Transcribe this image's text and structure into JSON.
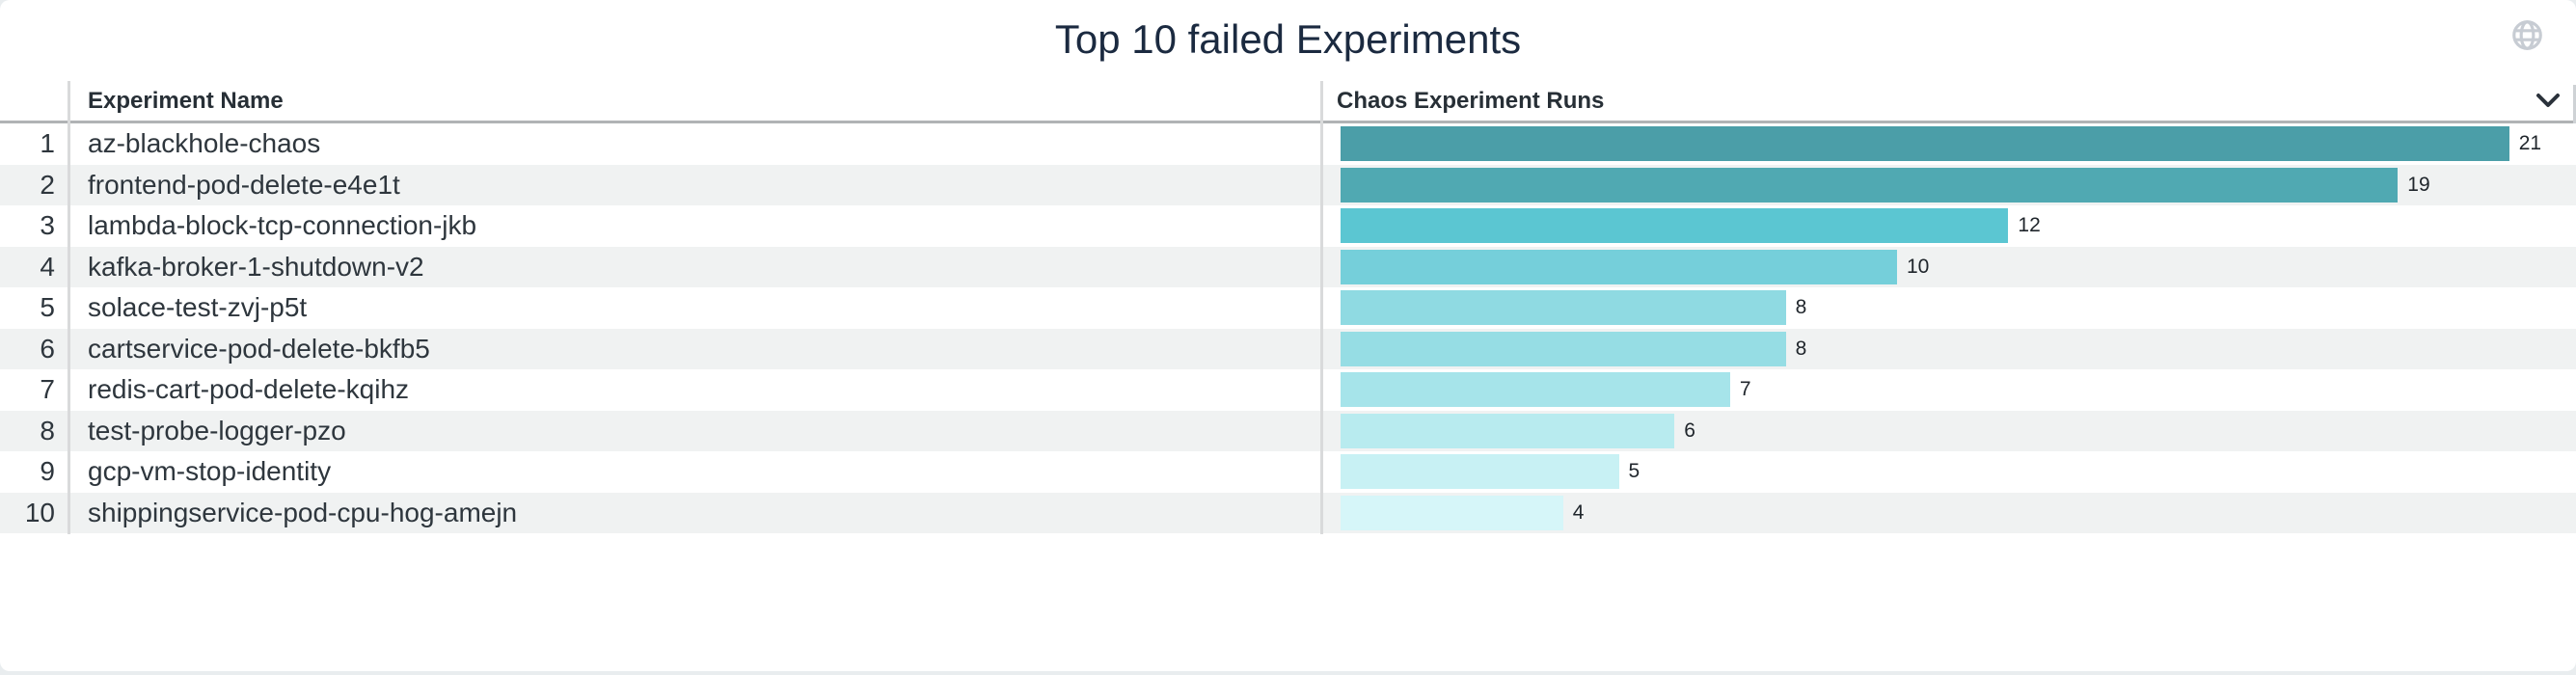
{
  "panel": {
    "title": "Top 10 failed Experiments",
    "background_color": "#ffffff",
    "page_background_color": "#e9edef",
    "title_color": "#1b2a40"
  },
  "icons": {
    "globe": "globe-icon",
    "chevron_down": "chevron-down-icon",
    "globe_color": "#c7ccd3",
    "chevron_color": "#2b323b"
  },
  "table": {
    "columns": [
      {
        "label": "Experiment Name"
      },
      {
        "label": "Chaos Experiment Runs"
      }
    ],
    "rows": [
      {
        "rank": "1",
        "name": "az-blackhole-chaos",
        "runs": "21"
      },
      {
        "rank": "2",
        "name": "frontend-pod-delete-e4e1t",
        "runs": "19"
      },
      {
        "rank": "3",
        "name": "lambda-block-tcp-connection-jkb",
        "runs": "12"
      },
      {
        "rank": "4",
        "name": "kafka-broker-1-shutdown-v2",
        "runs": "10"
      },
      {
        "rank": "5",
        "name": "solace-test-zvj-p5t",
        "runs": "8"
      },
      {
        "rank": "6",
        "name": "cartservice-pod-delete-bkfb5",
        "runs": "8"
      },
      {
        "rank": "7",
        "name": "redis-cart-pod-delete-kqihz",
        "runs": "7"
      },
      {
        "rank": "8",
        "name": "test-probe-logger-pzo",
        "runs": "6"
      },
      {
        "rank": "9",
        "name": "gcp-vm-stop-identity",
        "runs": "5"
      },
      {
        "rank": "10",
        "name": "shippingservice-pod-cpu-hog-amejn",
        "runs": "4"
      }
    ],
    "stripe_color": "#f0f2f2",
    "header_border_color": "#b0b3b5"
  },
  "chart_data": {
    "type": "bar",
    "orientation": "horizontal",
    "title": "Top 10 failed Experiments",
    "series_label": "Chaos Experiment Runs",
    "categories": [
      "az-blackhole-chaos",
      "frontend-pod-delete-e4e1t",
      "lambda-block-tcp-connection-jkb",
      "kafka-broker-1-shutdown-v2",
      "solace-test-zvj-p5t",
      "cartservice-pod-delete-bkfb5",
      "redis-cart-pod-delete-kqihz",
      "test-probe-logger-pzo",
      "gcp-vm-stop-identity",
      "shippingservice-pod-cpu-hog-amejn"
    ],
    "values": [
      21,
      19,
      12,
      10,
      8,
      8,
      7,
      6,
      5,
      4
    ],
    "bar_colors": [
      "#4B9EA8",
      "#50A9B2",
      "#5BC6D2",
      "#75CFDA",
      "#8FDAE2",
      "#96DDE4",
      "#A6E4EA",
      "#B8EBEF",
      "#C8F1F4",
      "#D6F6F9"
    ],
    "xlim": [
      0,
      21
    ],
    "value_labels_shown": true,
    "legend": "none",
    "grid": "off"
  }
}
